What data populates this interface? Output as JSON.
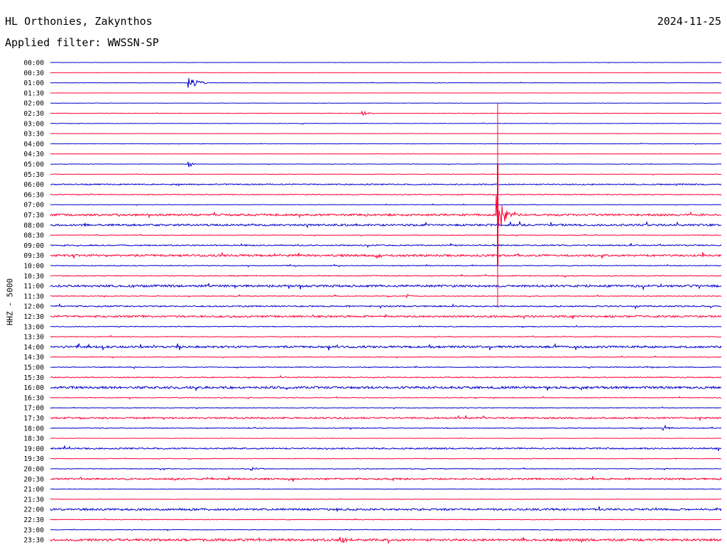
{
  "header": {
    "station": "HL Orthonies, Zakynthos",
    "filter": "Applied filter: WWSSN-SP",
    "date": "2024-11-25"
  },
  "channel_label": "HHZ - 5000",
  "colors": {
    "even_row": "#0000cc",
    "odd_row": "#ff0033"
  },
  "chart_data": {
    "type": "line",
    "title": "HL Orthonies, Zakynthos",
    "subtitle": "Applied filter: WWSSN-SP",
    "ylabel": "HHZ - 5000",
    "rows": [
      "00:00",
      "00:30",
      "01:00",
      "01:30",
      "02:00",
      "02:30",
      "03:00",
      "03:30",
      "04:00",
      "04:30",
      "05:00",
      "05:30",
      "06:00",
      "06:30",
      "07:00",
      "07:30",
      "08:00",
      "08:30",
      "09:00",
      "09:30",
      "10:00",
      "10:30",
      "11:00",
      "11:30",
      "12:00",
      "12:30",
      "13:00",
      "13:30",
      "14:00",
      "14:30",
      "15:00",
      "15:30",
      "16:00",
      "16:30",
      "17:00",
      "17:30",
      "18:00",
      "18:30",
      "19:00",
      "19:30",
      "20:00",
      "20:30",
      "21:00",
      "21:30",
      "22:00",
      "22:30",
      "23:00",
      "23:30"
    ],
    "row_noise": [
      0.2,
      0.1,
      0.3,
      0.1,
      0.2,
      0.3,
      0.3,
      0.2,
      0.3,
      0.2,
      0.3,
      0.3,
      0.8,
      0.6,
      0.3,
      1.4,
      1.3,
      0.4,
      0.8,
      1.4,
      0.5,
      0.6,
      1.5,
      0.5,
      0.9,
      1.3,
      0.5,
      0.5,
      1.4,
      0.5,
      0.6,
      0.7,
      1.6,
      0.5,
      0.4,
      1.1,
      0.5,
      0.3,
      1.0,
      0.4,
      0.5,
      1.2,
      0.3,
      0.3,
      1.4,
      0.4,
      0.4,
      1.6
    ],
    "events": [
      {
        "row": 2,
        "minute": 6.2,
        "amplitude": 9,
        "duration_min": 1.2
      },
      {
        "row": 5,
        "minute": 14.0,
        "amplitude": 3,
        "duration_min": 0.6
      },
      {
        "row": 10,
        "minute": 6.2,
        "amplitude": 5,
        "duration_min": 0.4
      },
      {
        "row": 15,
        "minute": 20.0,
        "amplitude": 30,
        "duration_min": 1.0
      },
      {
        "row": 19,
        "minute": 14.6,
        "amplitude": 4,
        "duration_min": 0.5
      },
      {
        "row": 23,
        "minute": 16.0,
        "amplitude": 3,
        "duration_min": 0.4
      },
      {
        "row": 25,
        "minute": 15.0,
        "amplitude": 2.5,
        "duration_min": 0.4
      },
      {
        "row": 28,
        "minute": 17.0,
        "amplitude": 3,
        "duration_min": 0.4
      },
      {
        "row": 36,
        "minute": 27.4,
        "amplitude": 7,
        "duration_min": 0.5
      },
      {
        "row": 40,
        "minute": 9.0,
        "amplitude": 2.5,
        "duration_min": 1.0
      },
      {
        "row": 41,
        "minute": 7.0,
        "amplitude": 4,
        "duration_min": 0.4
      },
      {
        "row": 47,
        "minute": 13.0,
        "amplitude": 9,
        "duration_min": 0.6
      }
    ],
    "major_event": {
      "minute": 20.0,
      "start_row": 4,
      "end_row": 24,
      "peak_row": 15
    },
    "grid": true
  }
}
